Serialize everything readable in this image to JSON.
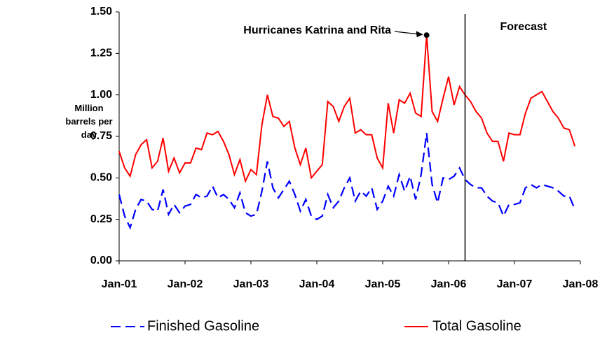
{
  "chart_data": {
    "type": "line",
    "y_label": "Million barrels per day",
    "annotations": {
      "hurricanes": "Hurricanes Katrina and Rita",
      "forecast": "Forecast"
    },
    "forecast_start": "2006-04",
    "x": [
      "2001-01",
      "2001-02",
      "2001-03",
      "2001-04",
      "2001-05",
      "2001-06",
      "2001-07",
      "2001-08",
      "2001-09",
      "2001-10",
      "2001-11",
      "2001-12",
      "2002-01",
      "2002-02",
      "2002-03",
      "2002-04",
      "2002-05",
      "2002-06",
      "2002-07",
      "2002-08",
      "2002-09",
      "2002-10",
      "2002-11",
      "2002-12",
      "2003-01",
      "2003-02",
      "2003-03",
      "2003-04",
      "2003-05",
      "2003-06",
      "2003-07",
      "2003-08",
      "2003-09",
      "2003-10",
      "2003-11",
      "2003-12",
      "2004-01",
      "2004-02",
      "2004-03",
      "2004-04",
      "2004-05",
      "2004-06",
      "2004-07",
      "2004-08",
      "2004-09",
      "2004-10",
      "2004-11",
      "2004-12",
      "2005-01",
      "2005-02",
      "2005-03",
      "2005-04",
      "2005-05",
      "2005-06",
      "2005-07",
      "2005-08",
      "2005-09",
      "2005-10",
      "2005-11",
      "2005-12",
      "2006-01",
      "2006-02",
      "2006-03",
      "2006-04",
      "2006-05",
      "2006-06",
      "2006-07",
      "2006-08",
      "2006-09",
      "2006-10",
      "2006-11",
      "2006-12",
      "2007-01",
      "2007-02",
      "2007-03",
      "2007-04",
      "2007-05",
      "2007-06",
      "2007-07",
      "2007-08",
      "2007-09",
      "2007-10",
      "2007-11",
      "2007-12"
    ],
    "series": [
      {
        "name": "Finished Gasoline",
        "color": "#0000ff",
        "dashed": true,
        "values": [
          0.4,
          0.27,
          0.2,
          0.31,
          0.37,
          0.36,
          0.31,
          0.3,
          0.43,
          0.28,
          0.34,
          0.29,
          0.33,
          0.34,
          0.4,
          0.38,
          0.39,
          0.45,
          0.38,
          0.4,
          0.37,
          0.32,
          0.41,
          0.29,
          0.27,
          0.28,
          0.42,
          0.6,
          0.44,
          0.38,
          0.43,
          0.48,
          0.4,
          0.3,
          0.37,
          0.27,
          0.25,
          0.27,
          0.4,
          0.32,
          0.36,
          0.44,
          0.5,
          0.36,
          0.42,
          0.39,
          0.44,
          0.31,
          0.36,
          0.45,
          0.39,
          0.52,
          0.42,
          0.51,
          0.37,
          0.52,
          0.77,
          0.46,
          0.35,
          0.5,
          0.49,
          0.51,
          0.56,
          0.49,
          0.46,
          0.44,
          0.44,
          0.39,
          0.36,
          0.35,
          0.27,
          0.34,
          0.34,
          0.35,
          0.44,
          0.46,
          0.44,
          0.46,
          0.45,
          0.44,
          0.42,
          0.39,
          0.39,
          0.31
        ]
      },
      {
        "name": "Total Gasoline",
        "color": "#ff0000",
        "dashed": false,
        "values": [
          0.66,
          0.56,
          0.51,
          0.64,
          0.7,
          0.73,
          0.56,
          0.6,
          0.74,
          0.54,
          0.62,
          0.53,
          0.59,
          0.59,
          0.68,
          0.67,
          0.77,
          0.76,
          0.78,
          0.72,
          0.64,
          0.52,
          0.61,
          0.48,
          0.55,
          0.52,
          0.82,
          1.0,
          0.87,
          0.86,
          0.81,
          0.84,
          0.68,
          0.58,
          0.68,
          0.5,
          0.54,
          0.58,
          0.96,
          0.93,
          0.84,
          0.93,
          0.98,
          0.77,
          0.79,
          0.76,
          0.76,
          0.62,
          0.56,
          0.95,
          0.77,
          0.97,
          0.95,
          1.01,
          0.89,
          0.87,
          1.36,
          0.9,
          0.84,
          0.98,
          1.11,
          0.94,
          1.05,
          1.0,
          0.96,
          0.9,
          0.86,
          0.77,
          0.72,
          0.72,
          0.6,
          0.77,
          0.76,
          0.76,
          0.89,
          0.98,
          1.0,
          1.02,
          0.96,
          0.9,
          0.86,
          0.8,
          0.79,
          0.69
        ]
      }
    ],
    "xlim": [
      "2001-01",
      "2008-01"
    ],
    "xticks": [
      {
        "value": "2001-01",
        "label": "Jan-01"
      },
      {
        "value": "2002-01",
        "label": "Jan-02"
      },
      {
        "value": "2003-01",
        "label": "Jan-03"
      },
      {
        "value": "2004-01",
        "label": "Jan-04"
      },
      {
        "value": "2005-01",
        "label": "Jan-05"
      },
      {
        "value": "2006-01",
        "label": "Jan-06"
      },
      {
        "value": "2007-01",
        "label": "Jan-07"
      },
      {
        "value": "2008-01",
        "label": "Jan-08"
      }
    ],
    "ylim": [
      0,
      1.5
    ],
    "yticks": [
      {
        "value": 0,
        "label": "0.00"
      },
      {
        "value": 0.25,
        "label": "0.25"
      },
      {
        "value": 0.5,
        "label": "0.50"
      },
      {
        "value": 0.75,
        "label": "0.75"
      },
      {
        "value": 1,
        "label": "1.00"
      },
      {
        "value": 1.25,
        "label": "1.25"
      },
      {
        "value": 1.5,
        "label": "1.50"
      }
    ],
    "grid": false,
    "legend": "bottom"
  }
}
